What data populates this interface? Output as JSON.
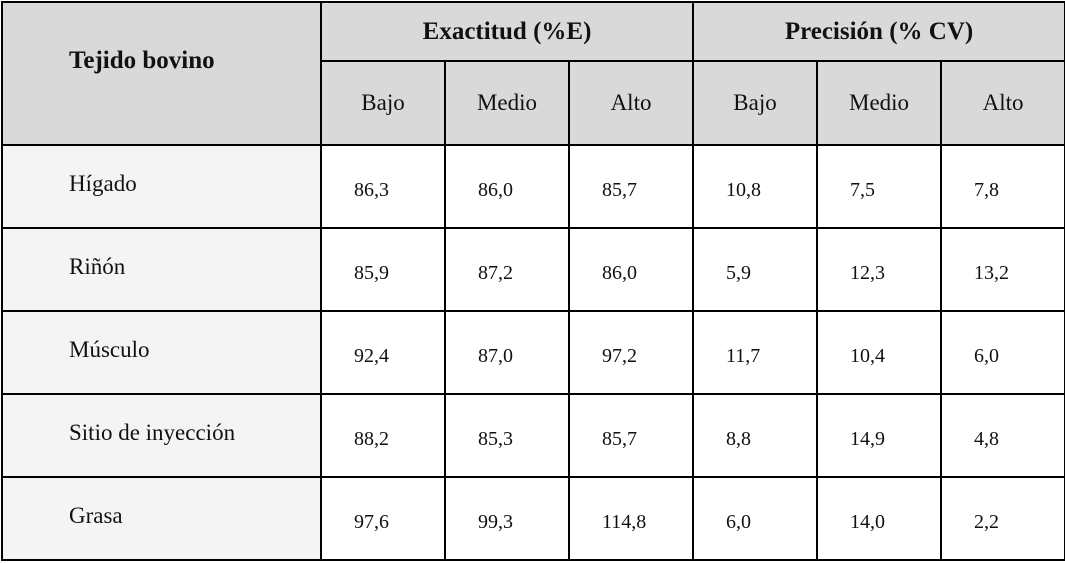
{
  "header": {
    "row_label": "Tejido bovino",
    "groups": [
      "Exactitud (%E)",
      "Precisión (% CV)"
    ],
    "subheaders": [
      "Bajo",
      "Medio",
      "Alto",
      "Bajo",
      "Medio",
      "Alto"
    ]
  },
  "table": {
    "rows": [
      {
        "label": "Hígado",
        "values": [
          "86,3",
          "86,0",
          "85,7",
          "10,8",
          "7,5",
          "7,8"
        ]
      },
      {
        "label": "Riñón",
        "values": [
          "85,9",
          "87,2",
          "86,0",
          "5,9",
          "12,3",
          "13,2"
        ]
      },
      {
        "label": "Músculo",
        "values": [
          "92,4",
          "87,0",
          "97,2",
          "11,7",
          "10,4",
          "6,0"
        ]
      },
      {
        "label": "Sitio de inyección",
        "values": [
          "88,2",
          "85,3",
          "85,7",
          "8,8",
          "14,9",
          "4,8"
        ]
      },
      {
        "label": "Grasa",
        "values": [
          "97,6",
          "99,3",
          "114,8",
          "6,0",
          "14,0",
          "2,2"
        ]
      }
    ]
  }
}
